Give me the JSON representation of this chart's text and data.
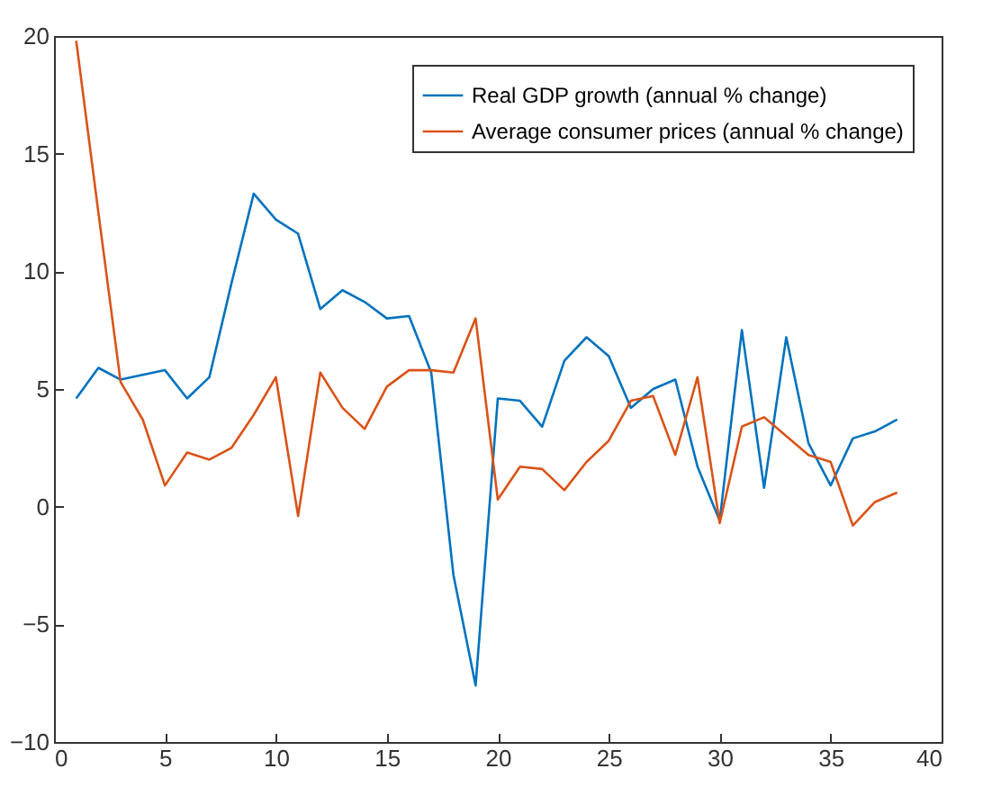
{
  "chart_data": {
    "type": "line",
    "x": [
      1,
      2,
      3,
      4,
      5,
      6,
      7,
      8,
      9,
      10,
      11,
      12,
      13,
      14,
      15,
      16,
      17,
      18,
      19,
      20,
      21,
      22,
      23,
      24,
      25,
      26,
      27,
      28,
      29,
      30,
      31,
      32,
      33,
      34,
      35,
      36,
      37,
      38
    ],
    "series": [
      {
        "name": "Real GDP growth (annual % change)",
        "color": "#0072bd",
        "values": [
          4.6,
          5.9,
          5.4,
          5.6,
          5.8,
          4.6,
          5.5,
          9.5,
          13.3,
          12.2,
          11.6,
          8.4,
          9.2,
          8.7,
          8.0,
          8.1,
          5.7,
          -2.9,
          -7.6,
          4.6,
          4.5,
          3.4,
          6.2,
          7.2,
          6.4,
          4.2,
          5.0,
          5.4,
          1.7,
          -0.6,
          7.5,
          0.8,
          7.2,
          2.7,
          0.9,
          2.9,
          3.2,
          3.7
        ]
      },
      {
        "name": "Average consumer prices (annual % change)",
        "color": "#d95319",
        "values": [
          19.8,
          12.5,
          5.3,
          3.7,
          0.9,
          2.3,
          2.0,
          2.5,
          3.9,
          5.5,
          -0.4,
          5.7,
          4.2,
          3.3,
          5.1,
          5.8,
          5.8,
          5.7,
          8.0,
          0.3,
          1.7,
          1.6,
          0.7,
          1.9,
          2.8,
          4.5,
          4.7,
          2.2,
          5.5,
          -0.7,
          3.4,
          3.8,
          3.0,
          2.2,
          1.9,
          -0.8,
          0.2,
          0.6
        ]
      }
    ],
    "xlim": [
      0,
      40
    ],
    "xticks": [
      0,
      5,
      10,
      15,
      20,
      25,
      30,
      35,
      40
    ],
    "ylim": [
      -10,
      20
    ],
    "yticks": [
      -10,
      -5,
      0,
      5,
      10,
      15,
      20
    ],
    "grid": false,
    "legend": "top right",
    "marker": "none",
    "line_style": "solid"
  }
}
